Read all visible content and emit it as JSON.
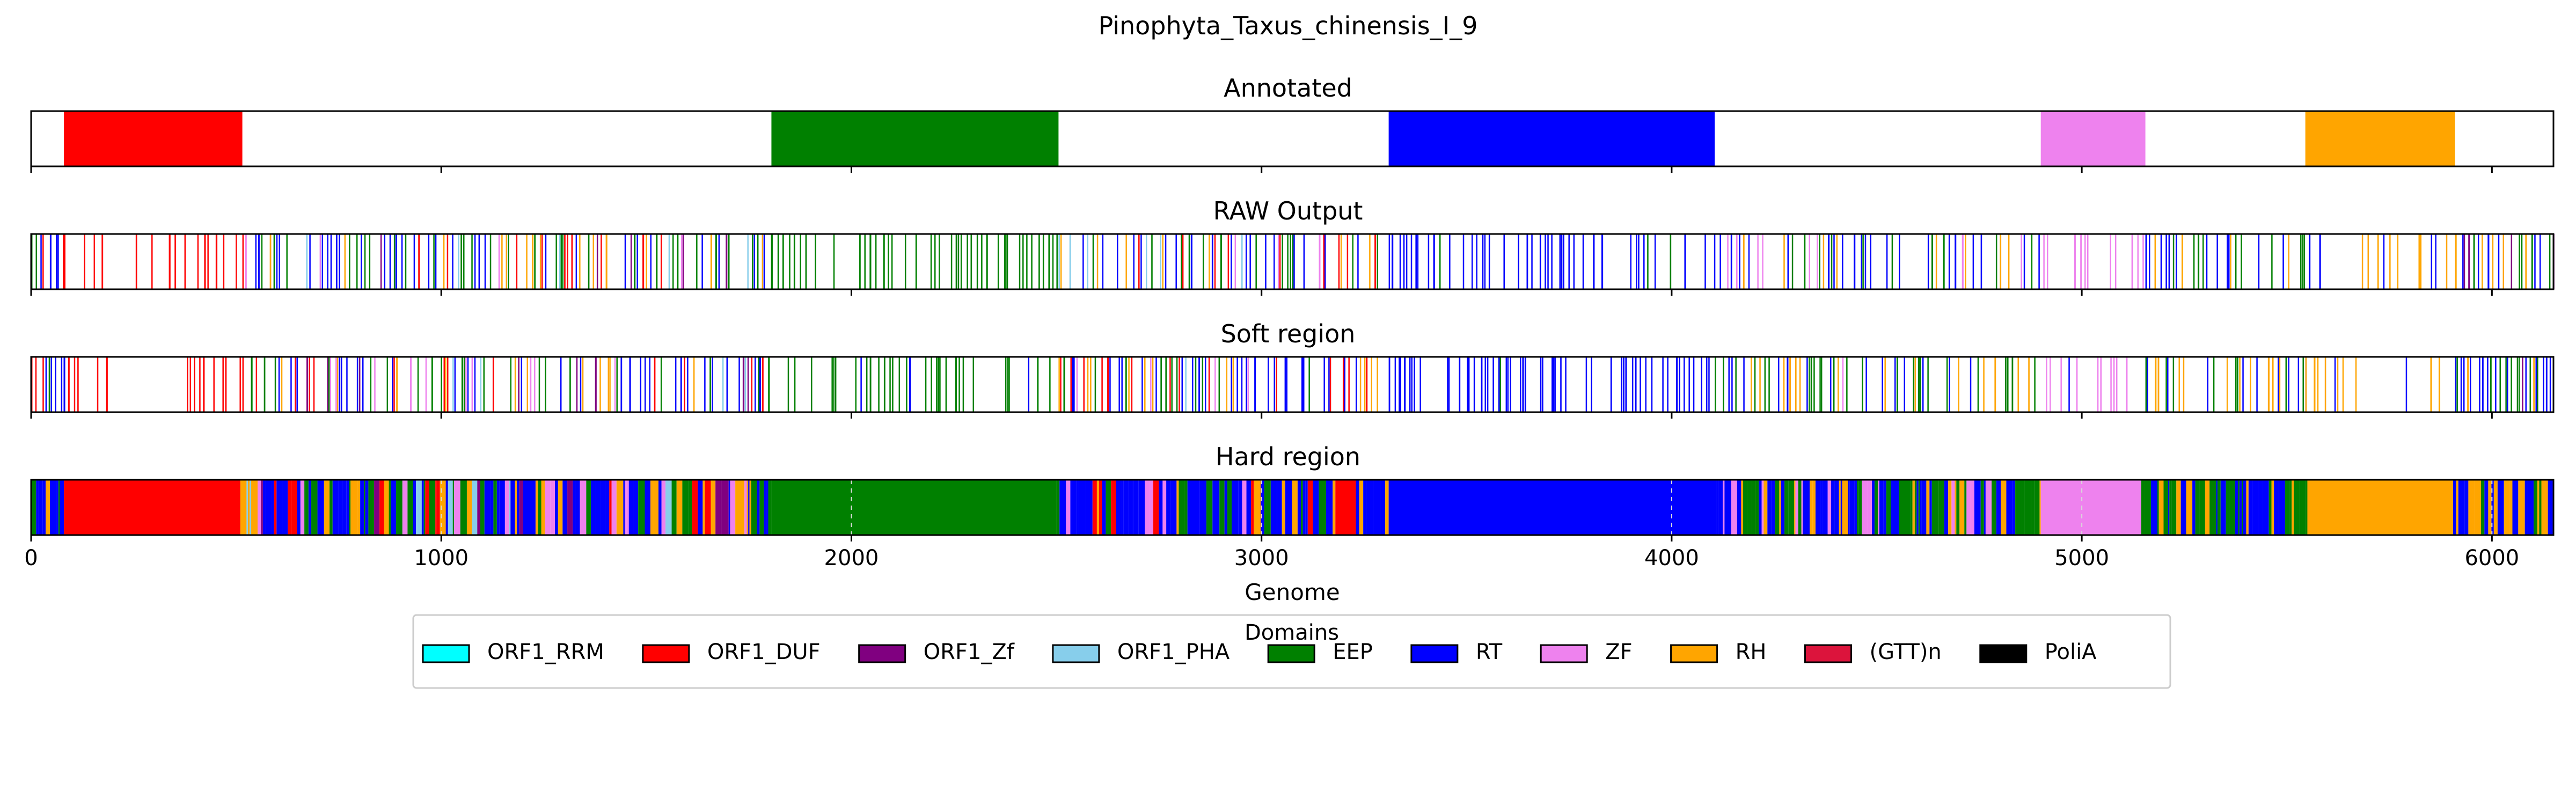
{
  "chart_data": {
    "type": "bar",
    "title": "Pinophyta_Taxus_chinensis_I_9",
    "xlabel": "Genome",
    "xlim": [
      0,
      6150
    ],
    "xticks": [
      0,
      1000,
      2000,
      3000,
      4000,
      5000,
      6000
    ],
    "grid": "x dashed (Hard region panel)",
    "legend": {
      "title": "Domains",
      "placement": "bottom-center",
      "entries": [
        {
          "name": "ORF1_RRM",
          "color": "#00FFFF"
        },
        {
          "name": "ORF1_DUF",
          "color": "#FF0000"
        },
        {
          "name": "ORF1_Zf",
          "color": "#800080"
        },
        {
          "name": "ORF1_PHA",
          "color": "#87CEEB"
        },
        {
          "name": "EEP",
          "color": "#008000"
        },
        {
          "name": "RT",
          "color": "#0000FF"
        },
        {
          "name": "ZF",
          "color": "#EE82EE"
        },
        {
          "name": "RH",
          "color": "#FFA500"
        },
        {
          "name": "(GTT)n",
          "color": "#DC143C"
        },
        {
          "name": "PoliA",
          "color": "#000000"
        }
      ]
    },
    "panels": [
      {
        "title": "Annotated",
        "mode": "segments",
        "segments": [
          {
            "domain": "ORF1_DUF",
            "start": 80,
            "end": 515
          },
          {
            "domain": "EEP",
            "start": 1805,
            "end": 2505
          },
          {
            "domain": "RT",
            "start": 3310,
            "end": 4105
          },
          {
            "domain": "ZF",
            "start": 4900,
            "end": 5155
          },
          {
            "domain": "RH",
            "start": 5545,
            "end": 5910
          }
        ]
      },
      {
        "title": "RAW Output",
        "mode": "stripes",
        "zones": [
          {
            "start": 0,
            "end": 80,
            "mix": {
              "RT": 5,
              "ORF1_DUF": 2,
              "EEP": 1,
              "RH": 1
            },
            "density": 0.8
          },
          {
            "start": 80,
            "end": 515,
            "mix": {
              "ORF1_DUF": 10,
              "RT": 1
            },
            "density": 0.35
          },
          {
            "start": 515,
            "end": 1805,
            "mix": {
              "RT": 5,
              "EEP": 4,
              "RH": 2,
              "ORF1_DUF": 2,
              "ORF1_Zf": 1,
              "ZF": 1,
              "ORF1_PHA": 1
            },
            "density": 0.7
          },
          {
            "start": 1805,
            "end": 2505,
            "mix": {
              "EEP": 12,
              "RT": 1
            },
            "density": 0.45
          },
          {
            "start": 2505,
            "end": 3310,
            "mix": {
              "RT": 5,
              "EEP": 3,
              "RH": 2,
              "ORF1_DUF": 2,
              "ZF": 1,
              "ORF1_PHA": 1
            },
            "density": 0.7
          },
          {
            "start": 3310,
            "end": 4105,
            "mix": {
              "RT": 12,
              "EEP": 1
            },
            "density": 0.55
          },
          {
            "start": 4105,
            "end": 4900,
            "mix": {
              "RT": 5,
              "EEP": 4,
              "RH": 2,
              "ZF": 1
            },
            "density": 0.6
          },
          {
            "start": 4900,
            "end": 5155,
            "mix": {
              "ZF": 8,
              "RT": 1
            },
            "density": 0.35
          },
          {
            "start": 5155,
            "end": 5545,
            "mix": {
              "RT": 4,
              "EEP": 4,
              "RH": 3
            },
            "density": 0.65
          },
          {
            "start": 5545,
            "end": 5910,
            "mix": {
              "RH": 8,
              "RT": 1
            },
            "density": 0.3
          },
          {
            "start": 5910,
            "end": 6150,
            "mix": {
              "RT": 5,
              "EEP": 3,
              "RH": 2,
              "ORF1_Zf": 1
            },
            "density": 0.8
          }
        ]
      },
      {
        "title": "Soft region",
        "mode": "stripes",
        "zones": [
          {
            "start": 0,
            "end": 80,
            "mix": {
              "RT": 5,
              "ORF1_DUF": 2,
              "EEP": 1,
              "RH": 1
            },
            "density": 0.8
          },
          {
            "start": 80,
            "end": 515,
            "mix": {
              "ORF1_DUF": 10,
              "RT": 1
            },
            "density": 0.35
          },
          {
            "start": 515,
            "end": 1805,
            "mix": {
              "RT": 5,
              "EEP": 4,
              "RH": 2,
              "ORF1_DUF": 2,
              "ORF1_Zf": 1,
              "ZF": 1,
              "ORF1_PHA": 1
            },
            "density": 0.7
          },
          {
            "start": 1805,
            "end": 2505,
            "mix": {
              "EEP": 12,
              "RT": 1
            },
            "density": 0.45
          },
          {
            "start": 2505,
            "end": 3310,
            "mix": {
              "RT": 5,
              "EEP": 3,
              "RH": 2,
              "ORF1_DUF": 2,
              "ZF": 1,
              "ORF1_PHA": 1
            },
            "density": 0.7
          },
          {
            "start": 3310,
            "end": 4105,
            "mix": {
              "RT": 12,
              "EEP": 1
            },
            "density": 0.55
          },
          {
            "start": 4105,
            "end": 4900,
            "mix": {
              "RT": 5,
              "EEP": 4,
              "RH": 2,
              "ZF": 1
            },
            "density": 0.6
          },
          {
            "start": 4900,
            "end": 5155,
            "mix": {
              "ZF": 8,
              "RT": 1
            },
            "density": 0.35
          },
          {
            "start": 5155,
            "end": 5545,
            "mix": {
              "RT": 4,
              "EEP": 4,
              "RH": 3
            },
            "density": 0.65
          },
          {
            "start": 5545,
            "end": 5910,
            "mix": {
              "RH": 8,
              "RT": 1
            },
            "density": 0.3
          },
          {
            "start": 5910,
            "end": 6150,
            "mix": {
              "RT": 5,
              "EEP": 3,
              "RH": 2,
              "ORF1_Zf": 1
            },
            "density": 0.8
          }
        ]
      },
      {
        "title": "Hard region",
        "mode": "hard",
        "segments": [
          {
            "domain": "ORF1_DUF",
            "start": 80,
            "end": 510
          },
          {
            "domain": "EEP",
            "start": 1805,
            "end": 2500
          },
          {
            "domain": "ORF1_DUF",
            "start": 3180,
            "end": 3230
          },
          {
            "domain": "RT",
            "start": 3310,
            "end": 4110
          },
          {
            "domain": "ZF",
            "start": 4900,
            "end": 5145
          },
          {
            "domain": "RH",
            "start": 5550,
            "end": 5905
          }
        ],
        "gaps": [
          {
            "start": 0,
            "end": 80,
            "mix": {
              "RT": 5,
              "EEP": 2,
              "RH": 1
            }
          },
          {
            "start": 510,
            "end": 1805,
            "mix": {
              "RT": 5,
              "EEP": 4,
              "RH": 2,
              "ORF1_DUF": 1,
              "ORF1_Zf": 1,
              "ZF": 1,
              "ORF1_PHA": 1
            }
          },
          {
            "start": 2500,
            "end": 3180,
            "mix": {
              "RT": 5,
              "EEP": 3,
              "RH": 2,
              "ORF1_DUF": 1,
              "ZF": 1
            }
          },
          {
            "start": 3230,
            "end": 3310,
            "mix": {
              "RT": 3,
              "RH": 2,
              "EEP": 1
            }
          },
          {
            "start": 4110,
            "end": 4900,
            "mix": {
              "RT": 4,
              "EEP": 4,
              "RH": 2,
              "ZF": 1
            }
          },
          {
            "start": 5145,
            "end": 5550,
            "mix": {
              "RT": 4,
              "EEP": 4,
              "RH": 3
            }
          },
          {
            "start": 5905,
            "end": 6150,
            "mix": {
              "RT": 5,
              "EEP": 3,
              "RH": 2
            }
          }
        ]
      }
    ]
  }
}
